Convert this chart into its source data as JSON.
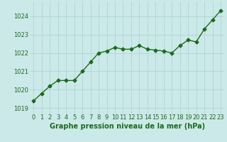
{
  "x": [
    0,
    1,
    2,
    3,
    4,
    5,
    6,
    7,
    8,
    9,
    10,
    11,
    12,
    13,
    14,
    15,
    16,
    17,
    18,
    19,
    20,
    21,
    22,
    23
  ],
  "y": [
    1019.4,
    1019.8,
    1020.2,
    1020.5,
    1020.5,
    1020.5,
    1021.0,
    1021.5,
    1022.0,
    1022.1,
    1022.3,
    1022.2,
    1022.2,
    1022.4,
    1022.2,
    1022.15,
    1022.1,
    1022.0,
    1022.4,
    1022.7,
    1022.6,
    1023.3,
    1023.8,
    1024.3
  ],
  "line_color": "#1a6b1a",
  "marker": "D",
  "marker_size": 2.5,
  "line_width": 1.0,
  "bg_color": "#cce9e9",
  "grid_color": "#aad0d0",
  "ylabel_ticks": [
    1019,
    1020,
    1021,
    1022,
    1023,
    1024
  ],
  "xlabel": "Graphe pression niveau de la mer (hPa)",
  "xlabel_color": "#1a6b1a",
  "xlabel_fontsize": 7.0,
  "tick_color": "#1a6b1a",
  "tick_fontsize": 6.0,
  "ylim": [
    1018.7,
    1024.8
  ],
  "xlim": [
    -0.5,
    23.5
  ]
}
